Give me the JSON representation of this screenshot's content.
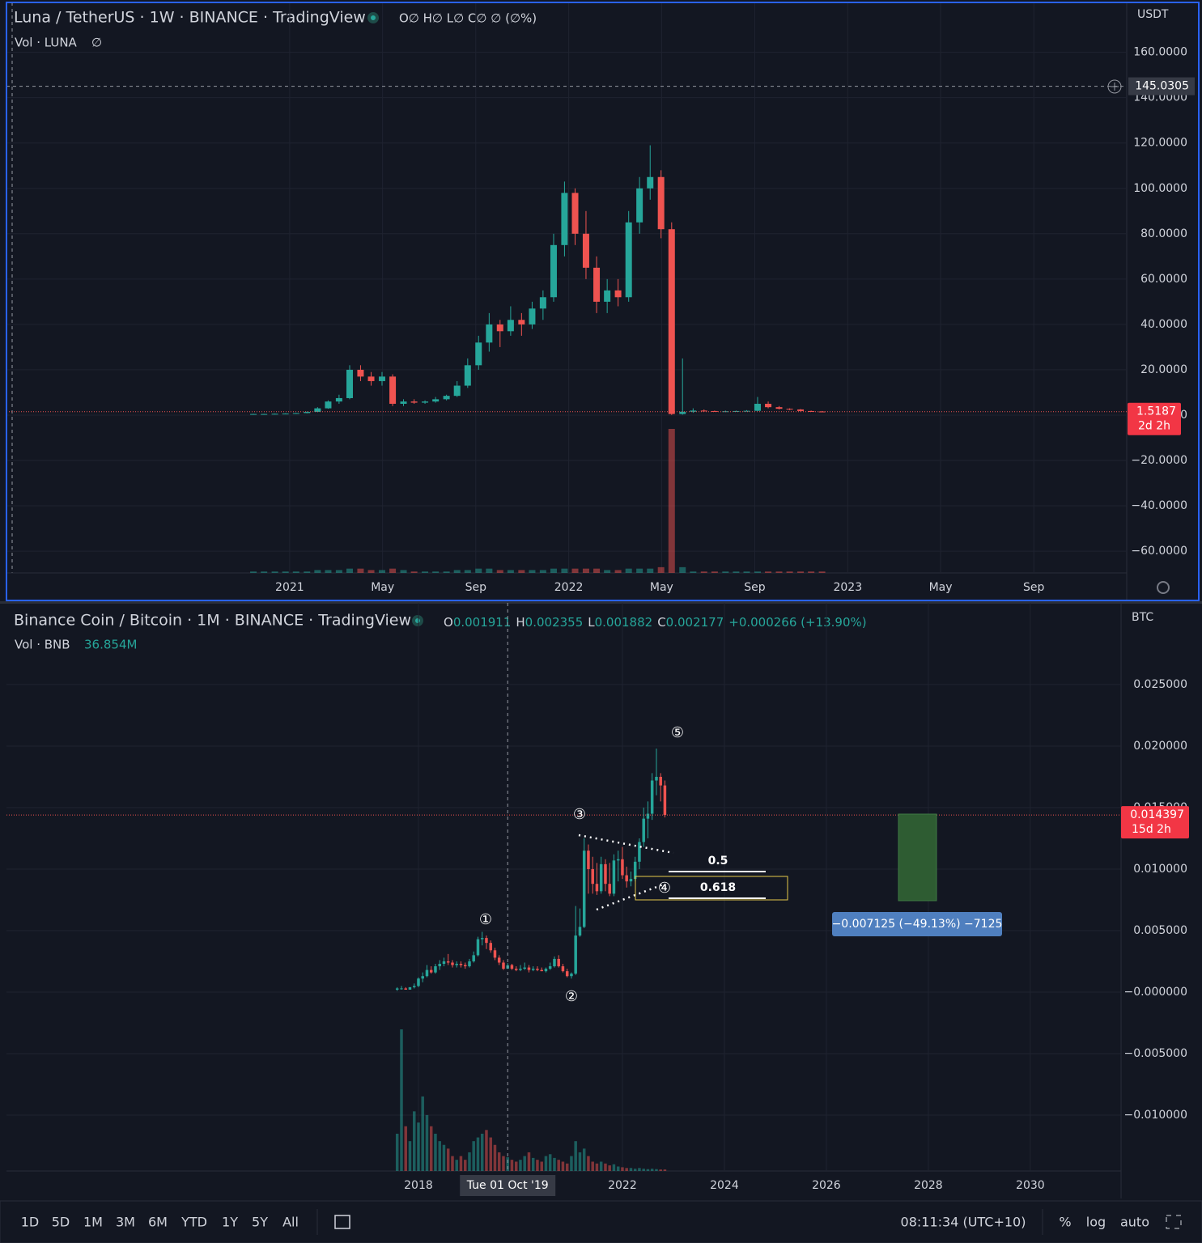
{
  "chart_data": [
    {
      "type": "candlestick",
      "title": "Luna / TetherUS · 1W · BINANCE · TradingView",
      "legend": "O∅ H∅ L∅ C∅ ∅ (∅%)",
      "volume_title": "Vol · LUNA",
      "volume_readout": "∅",
      "currency": "USDT",
      "up_color": "#26a69a",
      "down_color": "#ef5350",
      "x": [
        2020.87,
        2020.908,
        2020.947,
        2020.985,
        2021.023,
        2021.062,
        2021.1,
        2021.138,
        2021.177,
        2021.215,
        2021.254,
        2021.292,
        2021.331,
        2021.369,
        2021.408,
        2021.446,
        2021.485,
        2021.523,
        2021.562,
        2021.6,
        2021.638,
        2021.677,
        2021.715,
        2021.754,
        2021.792,
        2021.831,
        2021.869,
        2021.908,
        2021.946,
        2021.985,
        2022.023,
        2022.062,
        2022.1,
        2022.138,
        2022.177,
        2022.215,
        2022.254,
        2022.292,
        2022.331,
        2022.369,
        2022.408,
        2022.446,
        2022.485,
        2022.523,
        2022.562,
        2022.6,
        2022.638,
        2022.677,
        2022.715,
        2022.754,
        2022.792,
        2022.831,
        2022.869,
        2022.908
      ],
      "open": [
        0.4,
        0.5,
        0.5,
        0.6,
        0.7,
        0.9,
        1.4,
        3.0,
        6.0,
        7.5,
        20,
        17,
        15,
        17,
        5,
        6,
        5.5,
        6,
        7,
        8.5,
        13,
        22,
        32,
        40,
        37,
        42,
        40,
        47,
        52,
        75,
        98,
        80,
        65,
        50,
        55,
        52,
        85,
        100,
        105,
        82,
        0.5,
        1.5,
        2,
        1.8,
        1.6,
        1.7,
        1.8,
        1.9,
        5,
        3.5,
        2.8,
        2.5,
        1.8,
        1.6
      ],
      "high": [
        0.6,
        0.6,
        0.7,
        0.8,
        1.0,
        1.6,
        3.5,
        6.5,
        9,
        22,
        22,
        19,
        19,
        18,
        7,
        7,
        6.5,
        8,
        9,
        15,
        25,
        35,
        45,
        42,
        48,
        45,
        50,
        55,
        80,
        103,
        100,
        90,
        70,
        60,
        60,
        90,
        105,
        119,
        108,
        85,
        25,
        3,
        2.5,
        2,
        2,
        2,
        2.2,
        8,
        6,
        4,
        3,
        2.7,
        2,
        1.8
      ],
      "low": [
        0.3,
        0.4,
        0.4,
        0.5,
        0.6,
        0.8,
        1.3,
        2.8,
        5,
        7,
        15,
        13,
        13,
        4,
        4,
        5,
        5,
        5.5,
        6.5,
        8,
        12,
        20,
        28,
        30,
        35,
        35,
        38,
        42,
        50,
        70,
        75,
        60,
        45,
        45,
        48,
        50,
        80,
        95,
        78,
        0.1,
        0.2,
        1,
        1.5,
        1.5,
        1.4,
        1.5,
        1.6,
        1.8,
        3,
        2.5,
        2.2,
        1.6,
        1.5,
        1.4
      ],
      "close": [
        0.5,
        0.5,
        0.6,
        0.7,
        0.9,
        1.4,
        3.0,
        6.0,
        7.5,
        20,
        17,
        15,
        17,
        5,
        6,
        5.5,
        6,
        7,
        8.5,
        13,
        22,
        32,
        40,
        37,
        42,
        40,
        47,
        52,
        75,
        98,
        80,
        65,
        50,
        55,
        52,
        85,
        100,
        105,
        82,
        0.5,
        1.5,
        2,
        1.8,
        1.6,
        1.7,
        1.8,
        1.9,
        5,
        3.5,
        2.8,
        2.5,
        1.8,
        1.6,
        1.5187
      ],
      "volume": [
        1,
        1,
        1,
        1,
        1,
        1,
        2,
        2,
        2,
        3,
        3,
        2,
        2,
        3,
        2,
        1,
        1,
        1,
        1,
        2,
        2,
        3,
        3,
        2,
        2,
        2,
        2,
        2,
        3,
        3,
        3,
        3,
        3,
        2,
        2,
        3,
        3,
        3,
        4,
        100,
        4,
        1,
        1,
        1,
        1,
        1,
        1,
        1,
        1,
        1,
        1,
        1,
        1,
        1
      ],
      "xlim": [
        2019.985,
        2024.0
      ],
      "xticks": [
        2021,
        {
          "value": 2021.333,
          "label": "May"
        },
        {
          "value": 2021.667,
          "label": "Sep"
        },
        2022,
        {
          "value": 2022.333,
          "label": "May"
        },
        {
          "value": 2022.667,
          "label": "Sep"
        },
        2023,
        {
          "value": 2023.333,
          "label": "May"
        },
        {
          "value": 2023.667,
          "label": "Sep"
        }
      ],
      "ylim": [
        -69.6,
        182
      ],
      "yticks": [
        {
          "value": -60,
          "label": "−60.0000"
        },
        {
          "value": -40,
          "label": "−40.0000"
        },
        {
          "value": -20,
          "label": "−20.0000"
        },
        {
          "value": 0,
          "label": "0.0000"
        },
        {
          "value": 20,
          "label": "20.0000"
        },
        {
          "value": 40,
          "label": "40.0000"
        },
        {
          "value": 60,
          "label": "60.0000"
        },
        {
          "value": 80,
          "label": "80.0000"
        },
        {
          "value": 100,
          "label": "100.0000"
        },
        {
          "value": 120,
          "label": "120.0000"
        },
        {
          "value": 140,
          "label": "140.0000"
        },
        {
          "value": 160,
          "label": "160.0000"
        }
      ],
      "grid": true,
      "last_price": 1.5187,
      "countdown": "2d 2h",
      "crosshair": {
        "price": 145.0305
      }
    },
    {
      "type": "candlestick",
      "title": "Binance Coin / Bitcoin · 1M · BINANCE · TradingView",
      "ohlc_labels": [
        "O",
        "H",
        "L",
        "C"
      ],
      "change": "+0.000266 (+13.90%)",
      "volume_title": "Vol · BNB",
      "volume_readout": "36.854M",
      "currency": "BTC",
      "up_color": "#26a69a",
      "down_color": "#ef5350",
      "x": [
        2017.583,
        2017.667,
        2017.75,
        2017.833,
        2017.917,
        2018,
        2018.083,
        2018.167,
        2018.25,
        2018.333,
        2018.417,
        2018.5,
        2018.583,
        2018.667,
        2018.75,
        2018.833,
        2018.917,
        2019,
        2019.083,
        2019.167,
        2019.25,
        2019.333,
        2019.417,
        2019.5,
        2019.583,
        2019.667,
        2019.75,
        2019.833,
        2019.917,
        2020,
        2020.083,
        2020.167,
        2020.25,
        2020.333,
        2020.417,
        2020.5,
        2020.583,
        2020.667,
        2020.75,
        2020.833,
        2020.917,
        2021,
        2021.083,
        2021.167,
        2021.25,
        2021.333,
        2021.417,
        2021.5,
        2021.583,
        2021.667,
        2021.75,
        2021.833,
        2021.917,
        2022,
        2022.083,
        2022.167,
        2022.25,
        2022.333,
        2022.417,
        2022.5,
        2022.583,
        2022.667,
        2022.75,
        2022.833
      ],
      "open": [
        0.0002,
        0.0003,
        0.0003,
        0.0002,
        0.0004,
        0.0005,
        0.0011,
        0.0013,
        0.0018,
        0.0016,
        0.0021,
        0.0023,
        0.0025,
        0.0024,
        0.0022,
        0.0023,
        0.0022,
        0.0021,
        0.0025,
        0.003,
        0.0043,
        0.0044,
        0.004,
        0.0034,
        0.0028,
        0.0024,
        0.001911,
        0.0022,
        0.0019,
        0.0018,
        0.0019,
        0.002,
        0.0018,
        0.0019,
        0.0018,
        0.0017,
        0.0019,
        0.0021,
        0.0027,
        0.0021,
        0.0017,
        0.0013,
        0.0015,
        0.0046,
        0.0053,
        0.0115,
        0.01,
        0.0088,
        0.0082,
        0.0104,
        0.0088,
        0.008,
        0.0107,
        0.0108,
        0.0095,
        0.009,
        0.0092,
        0.0106,
        0.0122,
        0.0141,
        0.0145,
        0.0172,
        0.0175,
        0.0168
      ],
      "high": [
        0.0004,
        0.0005,
        0.0004,
        0.0004,
        0.0007,
        0.0012,
        0.0016,
        0.0022,
        0.0021,
        0.0023,
        0.0026,
        0.0028,
        0.0031,
        0.0026,
        0.0025,
        0.0025,
        0.0024,
        0.0027,
        0.0033,
        0.0045,
        0.0049,
        0.0046,
        0.0042,
        0.0036,
        0.003,
        0.0026,
        0.002355,
        0.0023,
        0.0021,
        0.0022,
        0.0024,
        0.0022,
        0.0021,
        0.0021,
        0.002,
        0.002,
        0.0024,
        0.0029,
        0.003,
        0.0023,
        0.0019,
        0.0016,
        0.007,
        0.0068,
        0.0125,
        0.012,
        0.011,
        0.0105,
        0.011,
        0.0108,
        0.0105,
        0.0112,
        0.0115,
        0.0118,
        0.0102,
        0.0098,
        0.011,
        0.0125,
        0.015,
        0.0155,
        0.0178,
        0.0198,
        0.0178,
        0.0172
      ],
      "low": [
        0.0001,
        0.0002,
        0.0002,
        0.0002,
        0.0003,
        0.0004,
        0.0008,
        0.0012,
        0.0015,
        0.0015,
        0.0018,
        0.0021,
        0.0022,
        0.002,
        0.002,
        0.002,
        0.0019,
        0.002,
        0.0024,
        0.0029,
        0.0038,
        0.0035,
        0.0032,
        0.0026,
        0.0022,
        0.0018,
        0.001882,
        0.0018,
        0.0017,
        0.0017,
        0.0018,
        0.0016,
        0.0017,
        0.0017,
        0.0017,
        0.0016,
        0.0018,
        0.002,
        0.002,
        0.0016,
        0.0012,
        0.0011,
        0.0014,
        0.0045,
        0.0052,
        0.008,
        0.008,
        0.0079,
        0.008,
        0.0082,
        0.0078,
        0.0078,
        0.009,
        0.0092,
        0.0085,
        0.0086,
        0.009,
        0.01,
        0.0118,
        0.0125,
        0.014,
        0.016,
        0.0155,
        0.0142
      ],
      "close": [
        0.0003,
        0.0003,
        0.0002,
        0.0004,
        0.0005,
        0.0011,
        0.0013,
        0.0018,
        0.0016,
        0.0021,
        0.0023,
        0.0025,
        0.0024,
        0.0022,
        0.0023,
        0.0022,
        0.0021,
        0.0025,
        0.003,
        0.0043,
        0.0044,
        0.004,
        0.0034,
        0.0028,
        0.0024,
        0.0019,
        0.002177,
        0.0019,
        0.0018,
        0.0019,
        0.002,
        0.0018,
        0.0019,
        0.0018,
        0.0017,
        0.0019,
        0.0021,
        0.0027,
        0.0021,
        0.0017,
        0.0013,
        0.0015,
        0.0046,
        0.0053,
        0.0115,
        0.01,
        0.0088,
        0.0082,
        0.0104,
        0.0088,
        0.008,
        0.0107,
        0.0108,
        0.0095,
        0.009,
        0.0092,
        0.0106,
        0.0122,
        0.0141,
        0.0145,
        0.0172,
        0.0175,
        0.0168,
        0.014397
      ],
      "volume": [
        100,
        380,
        120,
        80,
        160,
        130,
        200,
        150,
        120,
        100,
        80,
        70,
        60,
        40,
        30,
        40,
        30,
        50,
        80,
        90,
        100,
        110,
        90,
        70,
        50,
        40,
        36.854,
        30,
        25,
        30,
        40,
        50,
        35,
        30,
        25,
        40,
        45,
        35,
        30,
        25,
        20,
        40,
        80,
        50,
        60,
        40,
        25,
        20,
        25,
        20,
        15,
        18,
        12,
        10,
        8,
        8,
        6,
        8,
        6,
        5,
        6,
        5,
        4,
        4
      ],
      "xlim": [
        2009.92,
        2031.78
      ],
      "xticks": [
        2018,
        2022,
        2024,
        2026,
        2028,
        2030
      ],
      "ylim": [
        -0.01454,
        0.03164
      ],
      "yticks": [
        {
          "value": -0.01,
          "label": "−0.010000"
        },
        {
          "value": -0.005,
          "label": "−0.005000"
        },
        {
          "value": 0,
          "label": "−0.000000"
        },
        {
          "value": 0.005,
          "label": "0.005000"
        },
        {
          "value": 0.01,
          "label": "0.010000"
        },
        {
          "value": 0.015,
          "label": "0.015000"
        },
        {
          "value": 0.02,
          "label": "0.020000"
        },
        {
          "value": 0.025,
          "label": "0.025000"
        }
      ],
      "grid": true,
      "last_price": 0.014397,
      "countdown": "15d 2h",
      "crosshair": {
        "x": 2019.75,
        "label": "Tue 01 Oct '19"
      },
      "wave_labels": [
        "①",
        "②",
        "③",
        "④",
        "⑤"
      ],
      "fib_levels": [
        0.5,
        0.618
      ],
      "measure_label": "−0.007125 (−49.13%) −7125"
    }
  ],
  "toolbar": {
    "ranges": [
      "1D",
      "5D",
      "1M",
      "3M",
      "6M",
      "YTD",
      "1Y",
      "5Y",
      "All"
    ],
    "clock": "08:11:34 (UTC+10)",
    "options": [
      "%",
      "log",
      "auto"
    ]
  }
}
